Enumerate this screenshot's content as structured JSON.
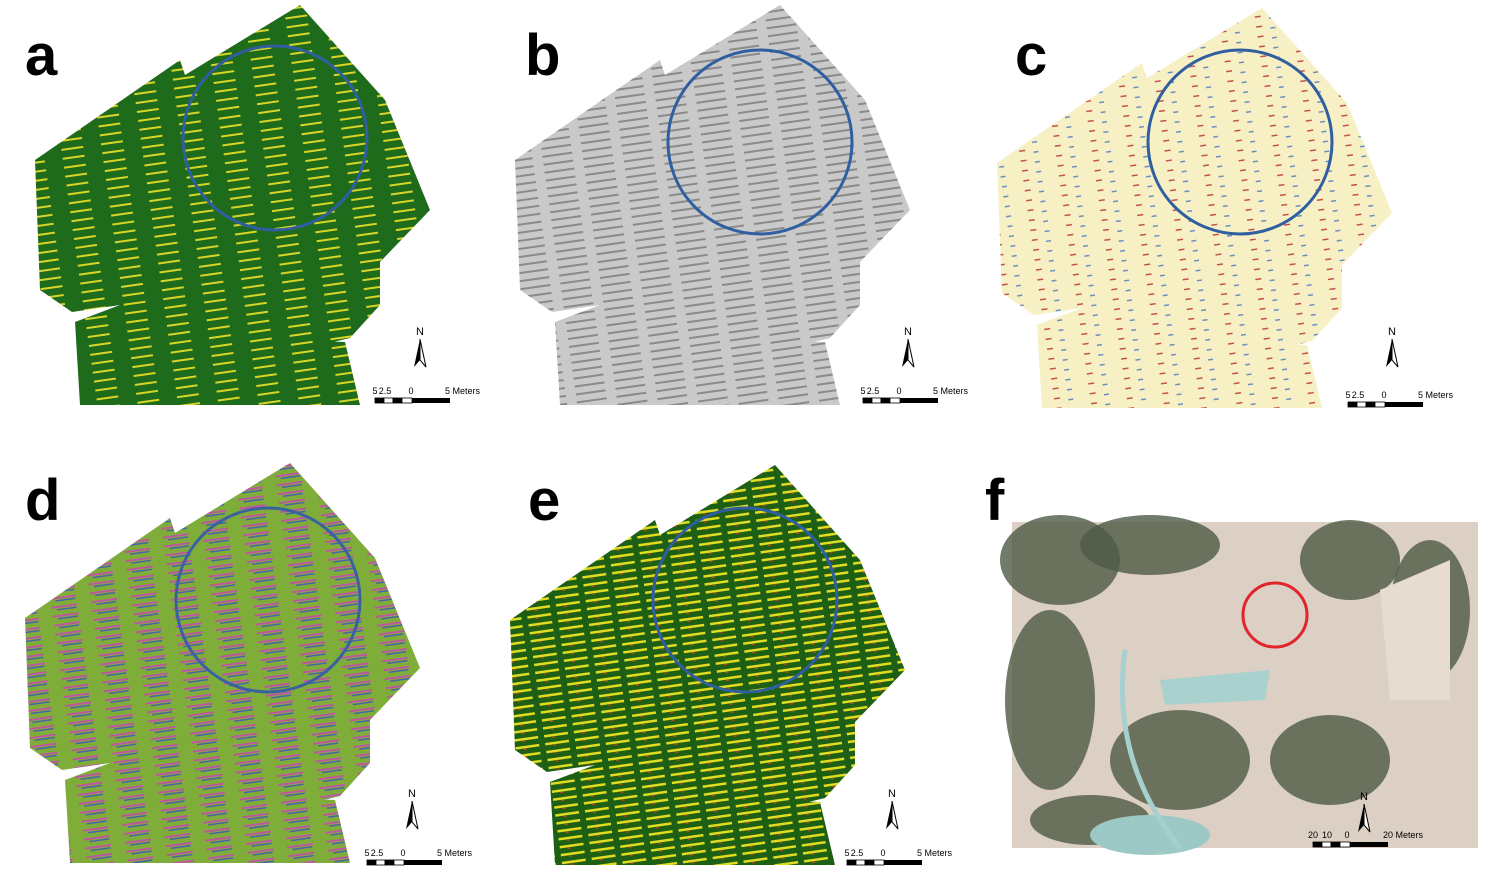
{
  "panels": [
    {
      "label": "a",
      "north": "N",
      "scale": [
        "5",
        "2.5",
        "0",
        "5 Meters"
      ]
    },
    {
      "label": "b",
      "north": "N",
      "scale": [
        "5",
        "2.5",
        "0",
        "5 Meters"
      ]
    },
    {
      "label": "c",
      "north": "N",
      "scale": [
        "5",
        "2.5",
        "0",
        "5 Meters"
      ]
    },
    {
      "label": "d",
      "north": "N",
      "scale": [
        "5",
        "2.5",
        "0",
        "5 Meters"
      ]
    },
    {
      "label": "e",
      "north": "N",
      "scale": [
        "5",
        "2.5",
        "0",
        "5 Meters"
      ]
    },
    {
      "label": "f",
      "north": "N",
      "scale": [
        "20",
        "10",
        "0",
        "20 Meters"
      ]
    }
  ]
}
